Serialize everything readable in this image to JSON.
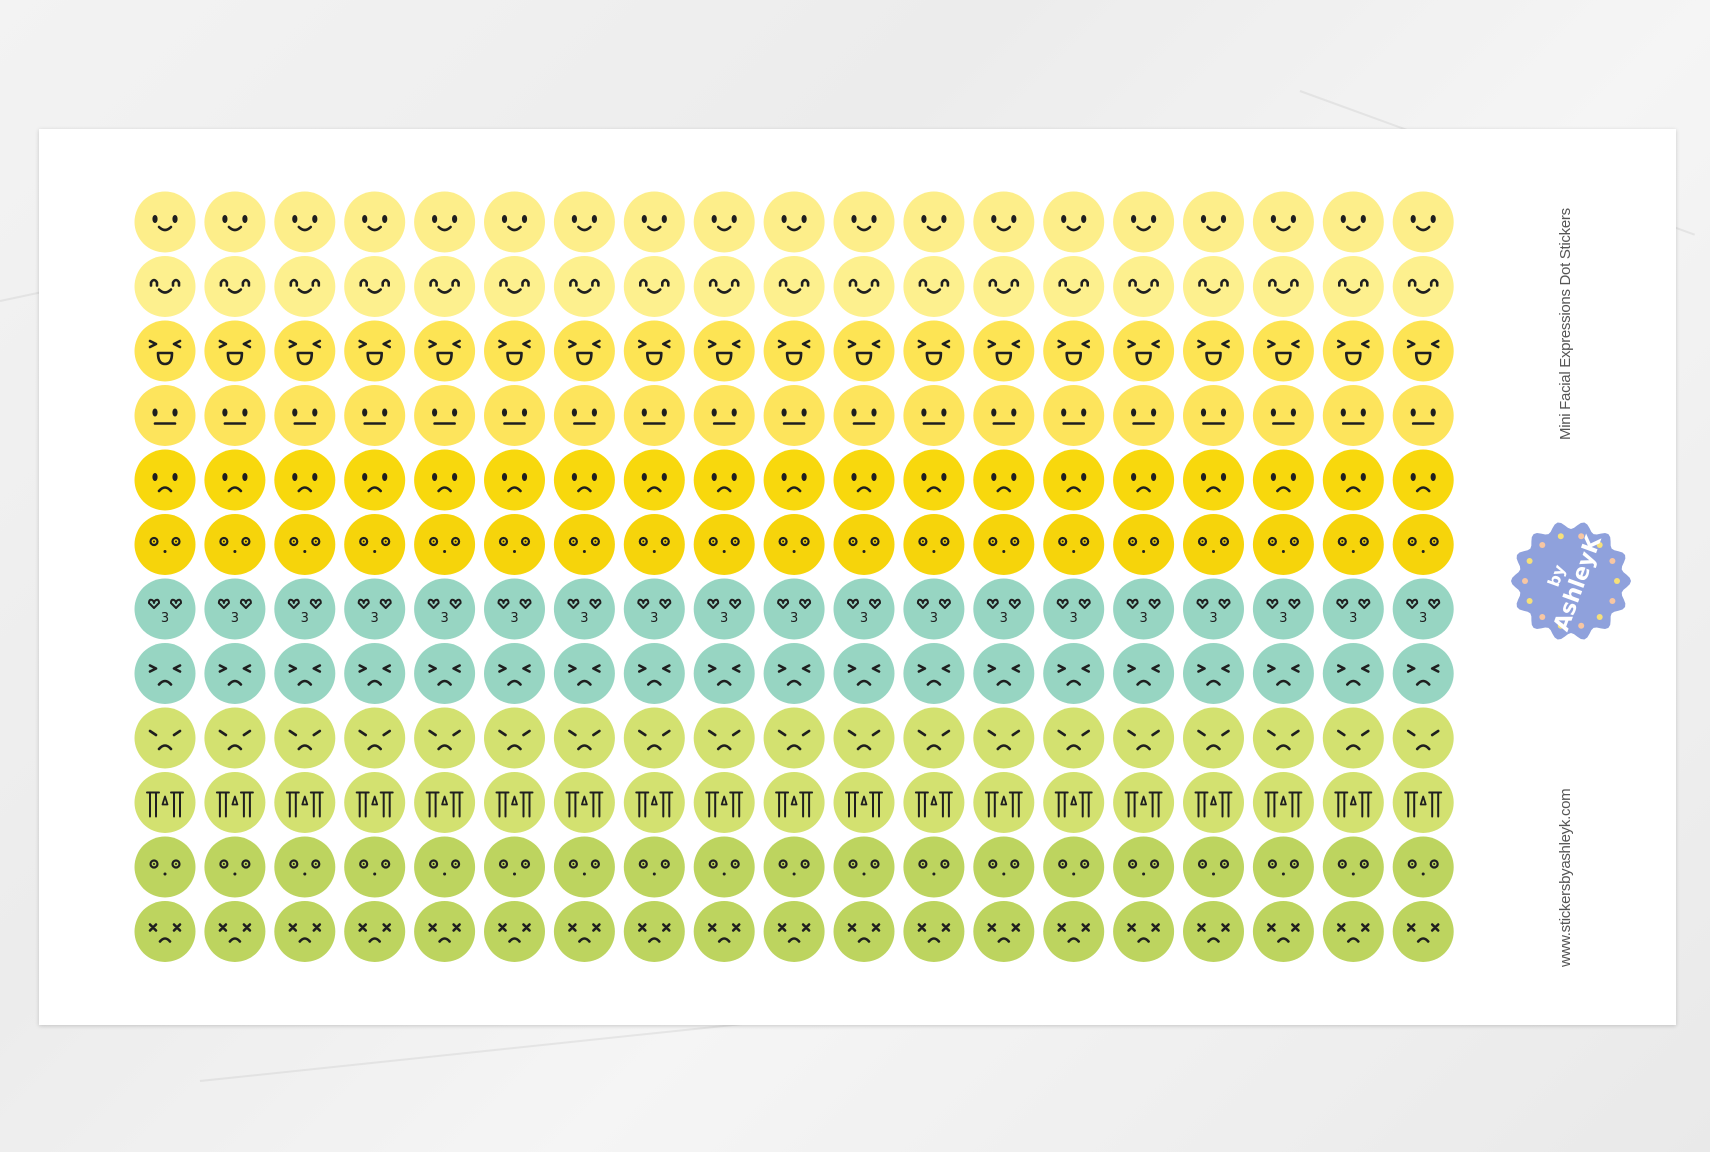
{
  "sheet": {
    "title": "Mini Facial Expressions Dot Stickers",
    "website": "www.stickersbyashleyk.com",
    "logo_text": "by AshleyK",
    "logo_color": "#8fa1dc"
  },
  "grid": {
    "columns": 19,
    "rows": [
      {
        "expression": "smile",
        "color": "#fdee8a"
      },
      {
        "expression": "happy-closed-eyes",
        "color": "#fdf08e"
      },
      {
        "expression": "laughing",
        "color": "#fde454"
      },
      {
        "expression": "neutral",
        "color": "#fde45c"
      },
      {
        "expression": "sad",
        "color": "#f8d80d"
      },
      {
        "expression": "dizzy",
        "color": "#f6d40b"
      },
      {
        "expression": "love",
        "color": "#97d5c2"
      },
      {
        "expression": "upset",
        "color": "#97d5c2"
      },
      {
        "expression": "angry",
        "color": "#d3e170"
      },
      {
        "expression": "crying",
        "color": "#d3e170"
      },
      {
        "expression": "surprised",
        "color": "#bdd45f"
      },
      {
        "expression": "dead",
        "color": "#bdd45f"
      }
    ],
    "ink_color": "#1f1f1f"
  }
}
